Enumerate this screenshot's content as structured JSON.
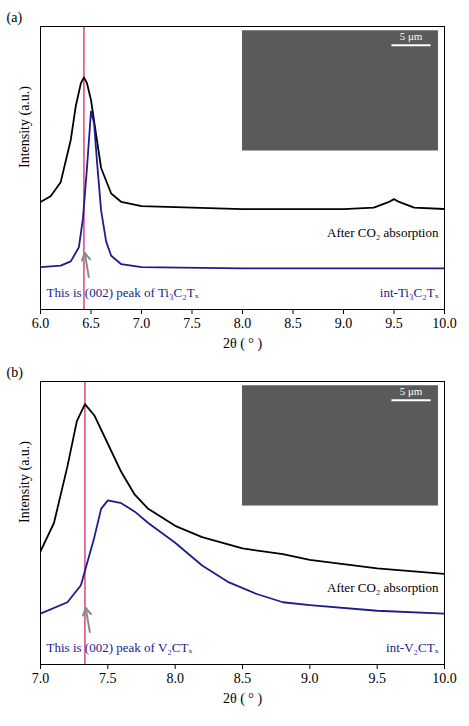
{
  "chart_data": [
    {
      "type": "line",
      "panel": "(a)",
      "x_label": "2θ ( ° )",
      "y_label": "Intensity (a.u.)",
      "tick_labels": "x",
      "xlim": [
        6.0,
        10.0
      ],
      "xticks": [
        {
          "value": 6.0,
          "label": "6.0"
        },
        {
          "value": 6.5,
          "label": "6.5"
        },
        {
          "value": 7.0,
          "label": "7.0"
        },
        {
          "value": 7.5,
          "label": "7.5"
        },
        {
          "value": 8.0,
          "label": "8.0"
        },
        {
          "value": 8.5,
          "label": "8.5"
        },
        {
          "value": 9.0,
          "label": "9.0"
        },
        {
          "value": 9.5,
          "label": "9.5"
        },
        {
          "value": 10.0,
          "label": "10.0"
        }
      ],
      "ylim": [
        0,
        100
      ],
      "vline": 6.43,
      "annotation": "This is (002) peak of Ti₃C₂Tₓ",
      "inset_scale_bar": "5 μm",
      "series": [
        {
          "name": "After CO₂ absorption",
          "color": "#000000",
          "x": [
            6.0,
            6.1,
            6.2,
            6.3,
            6.35,
            6.4,
            6.43,
            6.46,
            6.5,
            6.55,
            6.6,
            6.7,
            6.8,
            7.0,
            7.5,
            8.0,
            8.5,
            9.0,
            9.3,
            9.45,
            9.5,
            9.55,
            9.7,
            10.0
          ],
          "values": [
            38,
            40,
            45,
            60,
            72,
            80,
            82,
            80,
            74,
            62,
            50,
            41,
            38,
            36.5,
            36,
            35.5,
            35.5,
            35.5,
            36,
            38,
            39,
            38,
            36,
            35.5
          ]
        },
        {
          "name": "int-Ti₃C₂Tₓ",
          "color": "#1c1c8c",
          "x": [
            6.0,
            6.2,
            6.3,
            6.38,
            6.42,
            6.46,
            6.5,
            6.53,
            6.56,
            6.6,
            6.65,
            6.7,
            6.8,
            7.0,
            8.0,
            9.0,
            10.0
          ],
          "values": [
            15,
            15.5,
            17,
            22,
            32,
            50,
            70,
            66,
            52,
            35,
            24,
            19,
            16,
            15,
            14.5,
            14.5,
            14.5
          ]
        }
      ]
    },
    {
      "type": "line",
      "panel": "(b)",
      "x_label": "2θ ( ° )",
      "y_label": "Intensity (a.u.)",
      "tick_labels": "x",
      "xlim": [
        7.0,
        10.0
      ],
      "xticks": [
        {
          "value": 7.0,
          "label": "7.0"
        },
        {
          "value": 7.5,
          "label": "7.5"
        },
        {
          "value": 8.0,
          "label": "8.0"
        },
        {
          "value": 8.5,
          "label": "8.5"
        },
        {
          "value": 9.0,
          "label": "9.0"
        },
        {
          "value": 9.5,
          "label": "9.5"
        },
        {
          "value": 10.0,
          "label": "10.0"
        }
      ],
      "ylim": [
        0,
        100
      ],
      "vline": 7.33,
      "annotation": "This is (002) peak of V₂CTₓ",
      "inset_scale_bar": "5 μm",
      "series": [
        {
          "name": "After CO₂ absorption",
          "color": "#000000",
          "x": [
            7.0,
            7.1,
            7.2,
            7.27,
            7.33,
            7.4,
            7.5,
            7.6,
            7.7,
            7.8,
            8.0,
            8.2,
            8.5,
            8.8,
            9.0,
            9.5,
            10.0
          ],
          "values": [
            40,
            50,
            70,
            86,
            92,
            88,
            78,
            68,
            60,
            55,
            49,
            45,
            41,
            39,
            37,
            34,
            32
          ]
        },
        {
          "name": "int-V₂CTₓ",
          "color": "#1c1c8c",
          "x": [
            7.0,
            7.2,
            7.3,
            7.4,
            7.45,
            7.5,
            7.6,
            7.7,
            7.8,
            8.0,
            8.2,
            8.4,
            8.6,
            8.8,
            9.0,
            9.5,
            10.0
          ],
          "values": [
            18,
            22,
            28,
            45,
            55,
            58,
            57,
            54,
            50,
            43,
            35,
            29,
            25,
            22,
            21,
            19,
            18
          ]
        }
      ]
    }
  ]
}
